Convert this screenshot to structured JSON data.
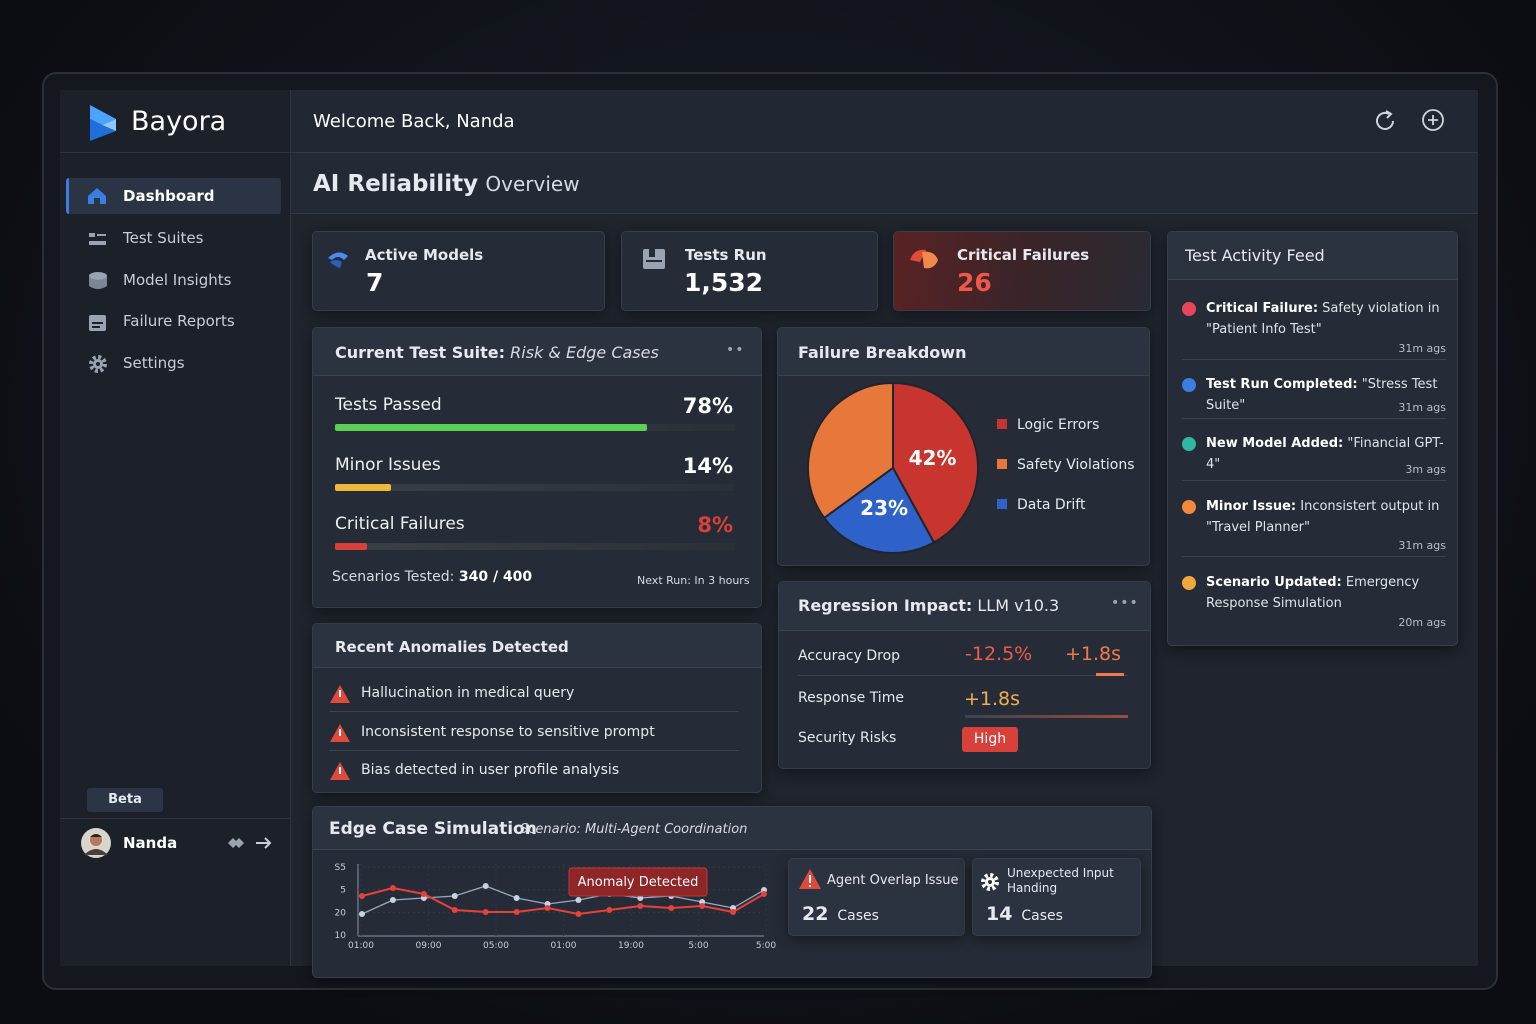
{
  "sidebar": {
    "brand": "Bayora",
    "nav": [
      "Dashboard",
      "Test Suites",
      "Model Insights",
      "Failure Reports",
      "Settings"
    ],
    "badge": "Beta",
    "user": "Nanda"
  },
  "header": {
    "greeting": "Welcome Back, Nanda"
  },
  "page_title": {
    "strong": "AI Reliability",
    "light": "Overview"
  },
  "stats": [
    {
      "label": "Active Models",
      "value": "7"
    },
    {
      "label": "Tests Run",
      "value": "1,532"
    },
    {
      "label": "Critical Failures",
      "value": "26"
    }
  ],
  "test_suite": {
    "title_strong": "Current Test Suite:",
    "title_light": "Risk & Edge Cases",
    "xlim": [
      0,
      100
    ],
    "bars": [
      {
        "label": "Tests Passed",
        "value": 78,
        "value_label": "78%",
        "color": "#5ccf55"
      },
      {
        "label": "Minor Issues",
        "value": 14,
        "value_label": "14%",
        "color": "#f0b83a"
      },
      {
        "label": "Critical Failures",
        "value": 8,
        "value_label": "8%",
        "color": "#d8403a"
      }
    ],
    "scenarios_label": "Scenarios Tested:",
    "scenarios_value": "340 / 400",
    "next_run": "Next Run: In 3 hours"
  },
  "anomalies": {
    "title": "Recent Anomalies Detected",
    "items": [
      "Hallucination in medical query",
      "Inconsistent response to sensitive prompt",
      "Bias detected in user profile analysis"
    ]
  },
  "failure_breakdown": {
    "title": "Failure Breakdown",
    "slices": [
      {
        "name": "Logic Errors",
        "value": 42,
        "value_label": "42%",
        "color": "#c8352e"
      },
      {
        "name": "Safety Violations",
        "value": 35,
        "color": "#e8773a"
      },
      {
        "name": "Data Drift",
        "value": 23,
        "value_label": "23%",
        "color": "#2f62c8"
      }
    ]
  },
  "regression": {
    "title_strong": "Regression Impact:",
    "title_light": "LLM v10.3",
    "rows": [
      {
        "label": "Accuracy Drop",
        "values": [
          "-12.5%",
          "+1.8s"
        ]
      },
      {
        "label": "Response Time",
        "values": [
          "+1.8s"
        ]
      },
      {
        "label": "Security Risks",
        "values": [
          "High"
        ]
      }
    ]
  },
  "activity_feed": {
    "title": "Test Activity Feed",
    "items": [
      {
        "strong": "Critical Failure:",
        "text": " Safety violation in \"Patient Info Test\"",
        "time": "31m ags"
      },
      {
        "strong": "Test Run Completed:",
        "text": " \"Stress Test Suite\"",
        "time": "31m ags"
      },
      {
        "strong": "New Model Added:",
        "text": " \"Financial GPT-4\"",
        "time": "3m ags"
      },
      {
        "strong": "Minor Issue:",
        "text": " Inconsistert output in \"Travel Planner\"",
        "time": "31m ags"
      },
      {
        "strong": "Scenario Updated:",
        "text": " Emergency Response Simulation",
        "time": "20m ags"
      }
    ]
  },
  "edge_case": {
    "title": "Edge Case Simulation",
    "subtitle": "Scenario: Multi-Agent Coordination",
    "chart": {
      "ylim": [
        5,
        45
      ],
      "y_labels": [
        "S5",
        "5",
        "20",
        "10"
      ],
      "x_labels": [
        "01:00",
        "09:00",
        "05:00",
        "01:00",
        "19:00",
        "5:00",
        "5:00"
      ],
      "annotation": "Anomaly Detected",
      "series": [
        {
          "color": "#e8413a",
          "values": [
            27,
            31,
            28,
            20,
            19,
            19,
            21,
            18,
            20,
            22,
            21,
            22,
            19,
            28
          ]
        },
        {
          "color": "#9aa8c4",
          "values": [
            18,
            25,
            26,
            27,
            32,
            26,
            23,
            25,
            28,
            26,
            27,
            24,
            21,
            30
          ]
        }
      ]
    },
    "cards": [
      {
        "title": "Agent Overlap Issue",
        "count": "22",
        "unit": "Cases"
      },
      {
        "title": "Unexpected Input Handing",
        "count": "14",
        "unit": "Cases"
      }
    ]
  }
}
